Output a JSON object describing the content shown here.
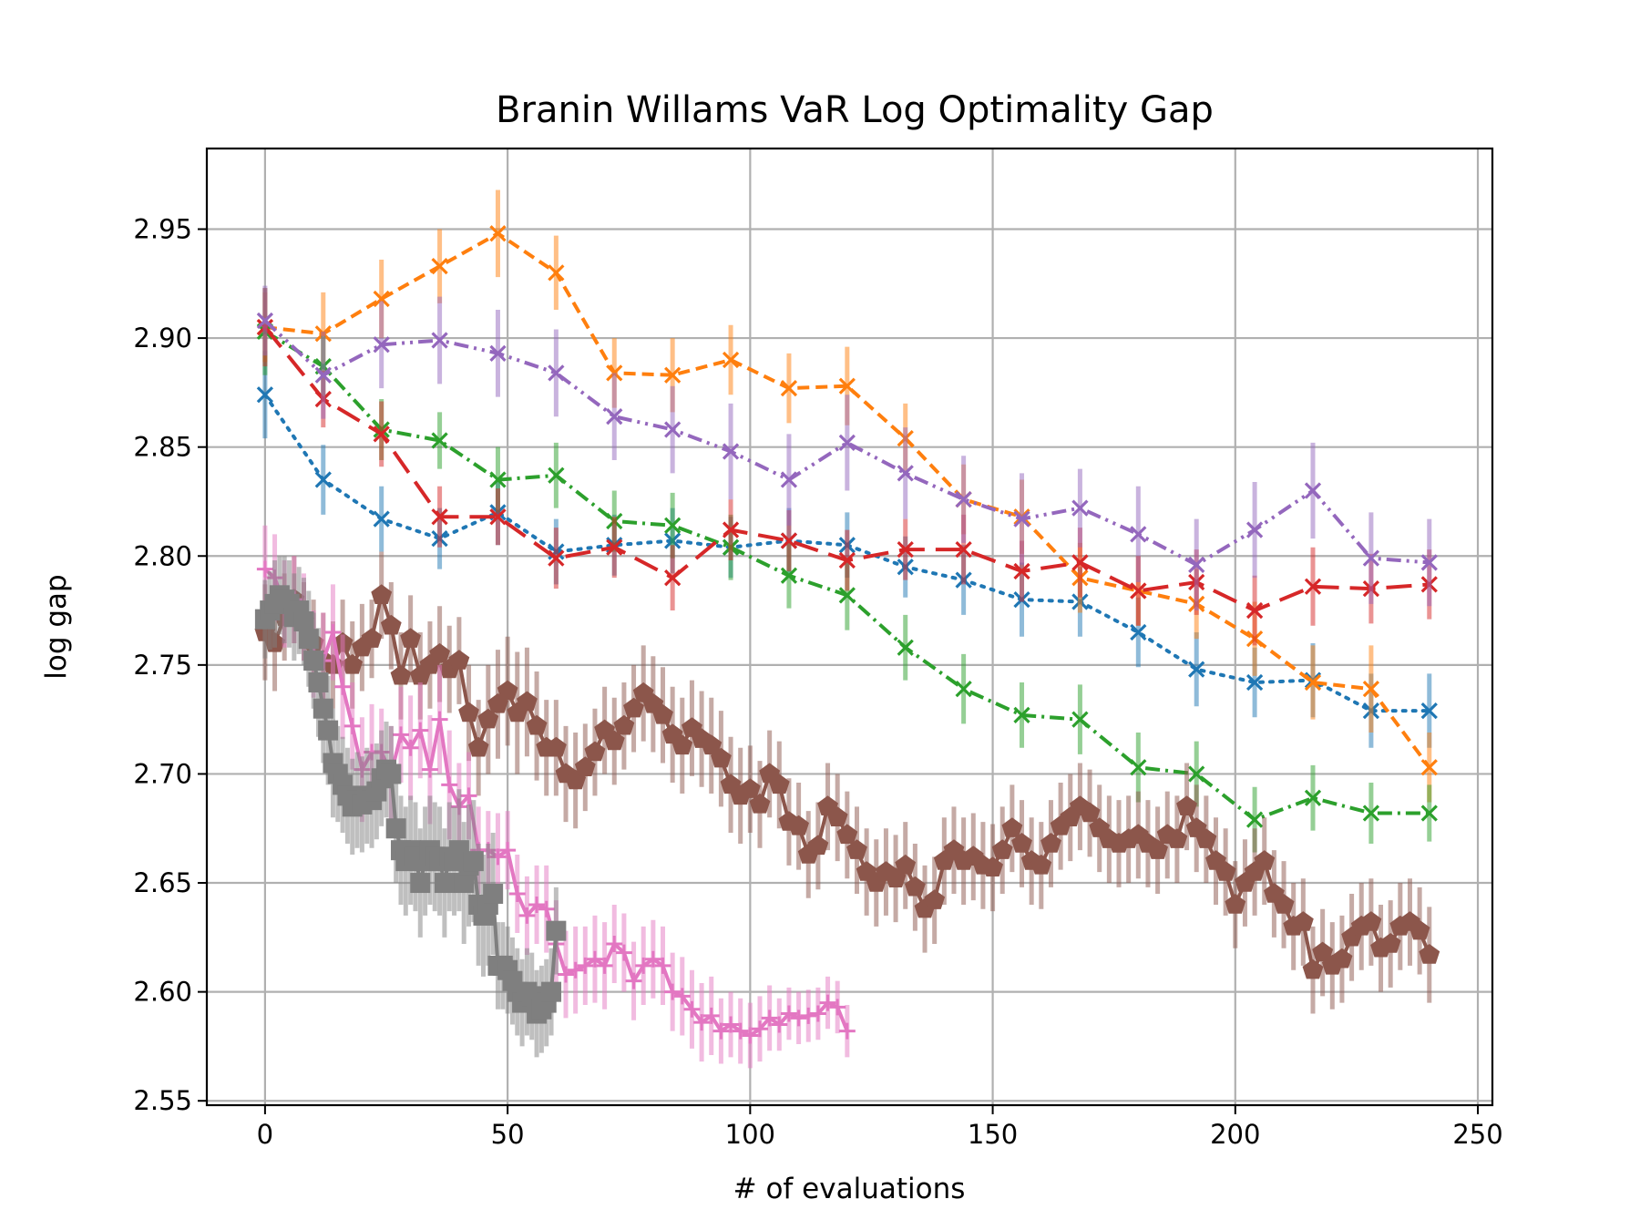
{
  "chart_data": {
    "type": "line",
    "title": "Branin Willams VaR Log Optimality Gap",
    "xlabel": "# of evaluations",
    "ylabel": "log gap",
    "xlim": [
      -12,
      253
    ],
    "ylim": [
      2.548,
      2.987
    ],
    "xticks": [
      0,
      50,
      100,
      150,
      200,
      250
    ],
    "yticks": [
      2.55,
      2.6,
      2.65,
      2.7,
      2.75,
      2.8,
      2.85,
      2.9,
      2.95
    ],
    "xtick_labels": [
      "0",
      "50",
      "100",
      "150",
      "200",
      "250"
    ],
    "ytick_labels": [
      "2.55",
      "2.60",
      "2.65",
      "2.70",
      "2.75",
      "2.80",
      "2.85",
      "2.90",
      "2.95"
    ],
    "grid": true,
    "legend": "none",
    "series": [
      {
        "color": "#1f77b4",
        "dash": "dotted",
        "marker": "x",
        "x": [
          0,
          12,
          24,
          36,
          48,
          60,
          72,
          84,
          96,
          108,
          120,
          132,
          144,
          156,
          168,
          180,
          192,
          204,
          216,
          228,
          240
        ],
        "y": [
          2.874,
          2.835,
          2.817,
          2.808,
          2.82,
          2.802,
          2.805,
          2.807,
          2.804,
          2.807,
          2.805,
          2.795,
          2.789,
          2.78,
          2.779,
          2.765,
          2.748,
          2.742,
          2.743,
          2.729,
          2.729
        ],
        "err": [
          0.02,
          0.016,
          0.015,
          0.014,
          0.015,
          0.015,
          0.014,
          0.015,
          0.014,
          0.015,
          0.015,
          0.014,
          0.016,
          0.017,
          0.016,
          0.016,
          0.017,
          0.016,
          0.017,
          0.017,
          0.017
        ]
      },
      {
        "color": "#ff7f0e",
        "dash": "dashed",
        "marker": "x",
        "x": [
          0,
          12,
          24,
          36,
          48,
          60,
          72,
          84,
          96,
          108,
          120,
          132,
          144,
          156,
          168,
          180,
          192,
          204,
          216,
          228,
          240
        ],
        "y": [
          2.905,
          2.902,
          2.918,
          2.933,
          2.948,
          2.93,
          2.884,
          2.883,
          2.89,
          2.877,
          2.878,
          2.854,
          2.826,
          2.818,
          2.79,
          2.784,
          2.778,
          2.762,
          2.742,
          2.739,
          2.703
        ],
        "err": [
          0.016,
          0.019,
          0.018,
          0.017,
          0.02,
          0.017,
          0.016,
          0.017,
          0.016,
          0.016,
          0.018,
          0.016,
          0.016,
          0.017,
          0.016,
          0.016,
          0.016,
          0.017,
          0.017,
          0.02,
          0.016
        ]
      },
      {
        "color": "#2ca02c",
        "dash": "dashdot",
        "marker": "x",
        "x": [
          0,
          12,
          24,
          36,
          48,
          60,
          72,
          84,
          96,
          108,
          120,
          132,
          144,
          156,
          168,
          180,
          192,
          204,
          216,
          228,
          240
        ],
        "y": [
          2.903,
          2.887,
          2.858,
          2.853,
          2.835,
          2.837,
          2.816,
          2.814,
          2.804,
          2.791,
          2.782,
          2.758,
          2.739,
          2.727,
          2.725,
          2.703,
          2.7,
          2.679,
          2.689,
          2.682,
          2.682
        ],
        "err": [
          0.02,
          0.014,
          0.014,
          0.013,
          0.015,
          0.015,
          0.014,
          0.015,
          0.015,
          0.015,
          0.016,
          0.015,
          0.016,
          0.015,
          0.016,
          0.016,
          0.015,
          0.015,
          0.015,
          0.014,
          0.013
        ]
      },
      {
        "color": "#d62728",
        "dash": "longdash",
        "marker": "x",
        "x": [
          0,
          12,
          24,
          36,
          48,
          60,
          72,
          84,
          96,
          108,
          120,
          132,
          144,
          156,
          168,
          180,
          192,
          204,
          216,
          228,
          240
        ],
        "y": [
          2.905,
          2.872,
          2.856,
          2.818,
          2.818,
          2.799,
          2.804,
          2.79,
          2.812,
          2.807,
          2.798,
          2.803,
          2.803,
          2.793,
          2.797,
          2.784,
          2.788,
          2.775,
          2.786,
          2.785,
          2.787
        ],
        "err": [
          0.018,
          0.013,
          0.015,
          0.014,
          0.013,
          0.014,
          0.014,
          0.015,
          0.014,
          0.014,
          0.014,
          0.014,
          0.016,
          0.014,
          0.016,
          0.016,
          0.015,
          0.016,
          0.018,
          0.016,
          0.016
        ]
      },
      {
        "color": "#9467bd",
        "dash": "dashdotdot",
        "marker": "x",
        "x": [
          0,
          12,
          24,
          36,
          48,
          60,
          72,
          84,
          96,
          108,
          120,
          132,
          144,
          156,
          168,
          180,
          192,
          204,
          216,
          228,
          240
        ],
        "y": [
          2.908,
          2.883,
          2.897,
          2.899,
          2.893,
          2.884,
          2.864,
          2.858,
          2.848,
          2.835,
          2.852,
          2.838,
          2.826,
          2.817,
          2.822,
          2.81,
          2.796,
          2.812,
          2.83,
          2.799,
          2.797
        ],
        "err": [
          0.016,
          0.02,
          0.02,
          0.02,
          0.02,
          0.02,
          0.02,
          0.02,
          0.022,
          0.021,
          0.022,
          0.021,
          0.02,
          0.021,
          0.018,
          0.022,
          0.021,
          0.022,
          0.022,
          0.021,
          0.02
        ]
      },
      {
        "color": "#8c564b",
        "dash": "solid",
        "marker": "pentagon",
        "x": [
          0,
          2,
          4,
          6,
          8,
          10,
          12,
          14,
          16,
          18,
          20,
          22,
          24,
          26,
          28,
          30,
          32,
          34,
          36,
          38,
          40,
          42,
          44,
          46,
          48,
          50,
          52,
          54,
          56,
          58,
          60,
          62,
          64,
          66,
          68,
          70,
          72,
          74,
          76,
          78,
          80,
          82,
          84,
          86,
          88,
          90,
          92,
          94,
          96,
          98,
          100,
          102,
          104,
          106,
          108,
          110,
          112,
          114,
          116,
          118,
          120,
          122,
          124,
          126,
          128,
          130,
          132,
          134,
          136,
          138,
          140,
          142,
          144,
          146,
          148,
          150,
          152,
          154,
          156,
          158,
          160,
          162,
          164,
          166,
          168,
          170,
          172,
          174,
          176,
          178,
          180,
          182,
          184,
          186,
          188,
          190,
          192,
          194,
          196,
          198,
          200,
          202,
          204,
          206,
          208,
          210,
          212,
          214,
          216,
          218,
          220,
          222,
          224,
          226,
          228,
          230,
          232,
          234,
          236,
          238,
          240
        ],
        "y": [
          2.765,
          2.76,
          2.772,
          2.78,
          2.77,
          2.76,
          2.752,
          2.75,
          2.76,
          2.75,
          2.758,
          2.762,
          2.782,
          2.768,
          2.745,
          2.762,
          2.745,
          2.75,
          2.755,
          2.748,
          2.752,
          2.728,
          2.712,
          2.725,
          2.732,
          2.738,
          2.728,
          2.733,
          2.722,
          2.712,
          2.712,
          2.7,
          2.697,
          2.703,
          2.71,
          2.72,
          2.715,
          2.722,
          2.73,
          2.737,
          2.732,
          2.727,
          2.718,
          2.713,
          2.721,
          2.716,
          2.713,
          2.707,
          2.695,
          2.69,
          2.693,
          2.686,
          2.7,
          2.695,
          2.678,
          2.676,
          2.663,
          2.667,
          2.685,
          2.68,
          2.672,
          2.665,
          2.655,
          2.65,
          2.655,
          2.652,
          2.658,
          2.648,
          2.638,
          2.642,
          2.66,
          2.665,
          2.66,
          2.662,
          2.658,
          2.657,
          2.665,
          2.675,
          2.668,
          2.66,
          2.658,
          2.668,
          2.676,
          2.68,
          2.685,
          2.682,
          2.675,
          2.67,
          2.668,
          2.67,
          2.672,
          2.668,
          2.665,
          2.672,
          2.67,
          2.685,
          2.675,
          2.67,
          2.66,
          2.655,
          2.64,
          2.65,
          2.655,
          2.66,
          2.645,
          2.64,
          2.63,
          2.632,
          2.61,
          2.618,
          2.612,
          2.615,
          2.625,
          2.63,
          2.632,
          2.62,
          2.622,
          2.63,
          2.632,
          2.628,
          2.617
        ],
        "err": [
          0.022,
          0.022,
          0.02,
          0.02,
          0.018,
          0.02,
          0.022,
          0.02,
          0.02,
          0.02,
          0.02,
          0.018,
          0.02,
          0.02,
          0.02,
          0.02,
          0.02,
          0.02,
          0.022,
          0.02,
          0.02,
          0.022,
          0.022,
          0.025,
          0.025,
          0.025,
          0.028,
          0.025,
          0.025,
          0.022,
          0.022,
          0.022,
          0.022,
          0.02,
          0.02,
          0.02,
          0.02,
          0.02,
          0.02,
          0.022,
          0.022,
          0.022,
          0.022,
          0.022,
          0.022,
          0.022,
          0.022,
          0.022,
          0.022,
          0.022,
          0.02,
          0.02,
          0.02,
          0.02,
          0.02,
          0.02,
          0.02,
          0.02,
          0.02,
          0.02,
          0.02,
          0.02,
          0.02,
          0.02,
          0.02,
          0.02,
          0.02,
          0.02,
          0.02,
          0.02,
          0.02,
          0.02,
          0.02,
          0.02,
          0.02,
          0.02,
          0.02,
          0.02,
          0.02,
          0.02,
          0.02,
          0.02,
          0.02,
          0.02,
          0.02,
          0.02,
          0.02,
          0.02,
          0.02,
          0.02,
          0.02,
          0.02,
          0.02,
          0.02,
          0.02,
          0.02,
          0.02,
          0.02,
          0.02,
          0.02,
          0.02,
          0.02,
          0.02,
          0.02,
          0.02,
          0.02,
          0.02,
          0.02,
          0.02,
          0.02,
          0.02,
          0.02,
          0.02,
          0.02,
          0.02,
          0.02,
          0.02,
          0.02,
          0.02,
          0.02,
          0.022
        ]
      },
      {
        "color": "#e377c2",
        "dash": "solid",
        "marker": "plus",
        "x": [
          0,
          2,
          4,
          6,
          8,
          10,
          12,
          14,
          16,
          18,
          20,
          22,
          24,
          26,
          28,
          30,
          32,
          34,
          36,
          38,
          40,
          42,
          44,
          46,
          48,
          50,
          52,
          54,
          56,
          58,
          60,
          62,
          64,
          66,
          68,
          70,
          72,
          74,
          76,
          78,
          80,
          82,
          84,
          86,
          88,
          90,
          92,
          94,
          96,
          98,
          100,
          102,
          104,
          106,
          108,
          110,
          112,
          114,
          116,
          118,
          120
        ],
        "y": [
          2.794,
          2.79,
          2.778,
          2.78,
          2.772,
          2.755,
          2.752,
          2.765,
          2.74,
          2.722,
          2.702,
          2.71,
          2.71,
          2.7,
          2.718,
          2.712,
          2.72,
          2.702,
          2.725,
          2.695,
          2.685,
          2.69,
          2.665,
          2.665,
          2.662,
          2.665,
          2.645,
          2.635,
          2.64,
          2.638,
          2.622,
          2.608,
          2.61,
          2.612,
          2.615,
          2.612,
          2.622,
          2.618,
          2.605,
          2.612,
          2.615,
          2.612,
          2.6,
          2.598,
          2.592,
          2.586,
          2.589,
          2.582,
          2.585,
          2.582,
          2.58,
          2.583,
          2.588,
          2.585,
          2.59,
          2.588,
          2.589,
          2.59,
          2.595,
          2.593,
          2.582
        ],
        "err": [
          0.02,
          0.02,
          0.02,
          0.02,
          0.02,
          0.02,
          0.022,
          0.022,
          0.024,
          0.02,
          0.024,
          0.022,
          0.02,
          0.022,
          0.022,
          0.024,
          0.022,
          0.025,
          0.025,
          0.025,
          0.02,
          0.02,
          0.02,
          0.018,
          0.02,
          0.018,
          0.018,
          0.018,
          0.018,
          0.02,
          0.02,
          0.02,
          0.02,
          0.018,
          0.02,
          0.02,
          0.018,
          0.018,
          0.018,
          0.018,
          0.018,
          0.018,
          0.018,
          0.018,
          0.018,
          0.018,
          0.018,
          0.015,
          0.015,
          0.015,
          0.015,
          0.015,
          0.015,
          0.012,
          0.012,
          0.012,
          0.012,
          0.012,
          0.012,
          0.012,
          0.012
        ]
      },
      {
        "color": "#7f7f7f",
        "dash": "solid",
        "marker": "square",
        "x": [
          0,
          1,
          2,
          3,
          4,
          5,
          6,
          7,
          8,
          9,
          10,
          11,
          12,
          13,
          14,
          15,
          16,
          17,
          18,
          19,
          20,
          21,
          22,
          23,
          24,
          25,
          26,
          27,
          28,
          29,
          30,
          31,
          32,
          33,
          34,
          35,
          36,
          37,
          38,
          39,
          40,
          41,
          42,
          43,
          44,
          45,
          46,
          47,
          48,
          49,
          50,
          51,
          52,
          53,
          54,
          55,
          56,
          57,
          58,
          59,
          60
        ],
        "y": [
          2.771,
          2.775,
          2.778,
          2.782,
          2.78,
          2.778,
          2.772,
          2.775,
          2.77,
          2.762,
          2.752,
          2.742,
          2.73,
          2.72,
          2.705,
          2.7,
          2.695,
          2.69,
          2.685,
          2.688,
          2.686,
          2.69,
          2.688,
          2.692,
          2.698,
          2.702,
          2.7,
          2.675,
          2.665,
          2.66,
          2.665,
          2.662,
          2.65,
          2.66,
          2.665,
          2.662,
          2.66,
          2.65,
          2.662,
          2.66,
          2.665,
          2.65,
          2.658,
          2.66,
          2.64,
          2.635,
          2.64,
          2.645,
          2.612,
          2.612,
          2.61,
          2.605,
          2.6,
          2.595,
          2.6,
          2.598,
          2.59,
          2.592,
          2.595,
          2.6,
          2.628
        ],
        "err": [
          0.018,
          0.018,
          0.02,
          0.018,
          0.02,
          0.02,
          0.02,
          0.02,
          0.02,
          0.022,
          0.022,
          0.025,
          0.025,
          0.025,
          0.025,
          0.022,
          0.022,
          0.022,
          0.022,
          0.022,
          0.022,
          0.022,
          0.022,
          0.022,
          0.022,
          0.022,
          0.022,
          0.025,
          0.025,
          0.025,
          0.025,
          0.025,
          0.025,
          0.025,
          0.025,
          0.025,
          0.025,
          0.025,
          0.025,
          0.025,
          0.028,
          0.028,
          0.028,
          0.028,
          0.028,
          0.028,
          0.028,
          0.028,
          0.02,
          0.02,
          0.02,
          0.02,
          0.02,
          0.02,
          0.02,
          0.02,
          0.02,
          0.02,
          0.02,
          0.02,
          0.02
        ]
      }
    ]
  }
}
